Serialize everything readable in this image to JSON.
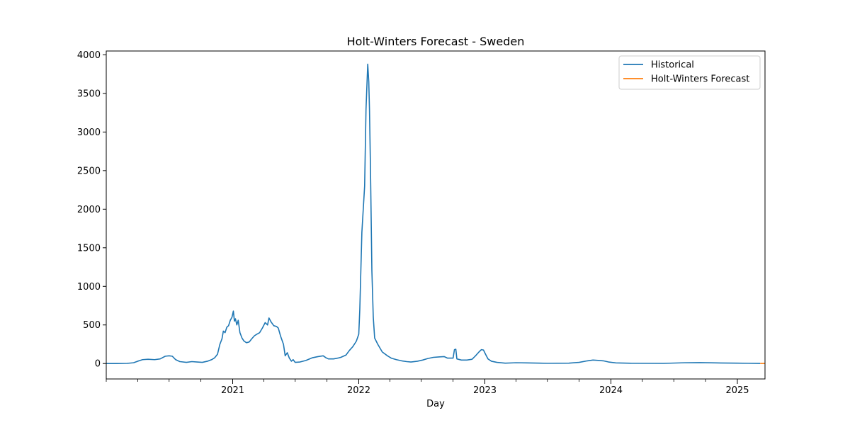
{
  "chart_data": {
    "type": "line",
    "title": "Holt-Winters Forecast - Sweden",
    "xlabel": "Day",
    "ylabel": "",
    "xlim": [
      "2020-01-01",
      "2025-03-22"
    ],
    "ylim": [
      -200,
      4050
    ],
    "x_ticks": [
      "2021",
      "2022",
      "2023",
      "2024",
      "2025"
    ],
    "y_ticks": [
      0,
      500,
      1000,
      1500,
      2000,
      2500,
      3000,
      3500,
      4000
    ],
    "grid": false,
    "legend_position": "top-right",
    "series": [
      {
        "name": "Historical",
        "color": "#1f77b4",
        "points": [
          [
            "2020-01-01",
            0
          ],
          [
            "2020-02-01",
            0
          ],
          [
            "2020-03-01",
            2
          ],
          [
            "2020-03-20",
            10
          ],
          [
            "2020-04-01",
            30
          ],
          [
            "2020-04-15",
            50
          ],
          [
            "2020-05-01",
            55
          ],
          [
            "2020-05-20",
            50
          ],
          [
            "2020-06-05",
            60
          ],
          [
            "2020-06-20",
            95
          ],
          [
            "2020-07-01",
            100
          ],
          [
            "2020-07-10",
            95
          ],
          [
            "2020-07-20",
            50
          ],
          [
            "2020-08-01",
            25
          ],
          [
            "2020-08-20",
            15
          ],
          [
            "2020-09-05",
            25
          ],
          [
            "2020-09-20",
            20
          ],
          [
            "2020-10-05",
            15
          ],
          [
            "2020-10-20",
            30
          ],
          [
            "2020-11-01",
            50
          ],
          [
            "2020-11-10",
            75
          ],
          [
            "2020-11-18",
            120
          ],
          [
            "2020-11-25",
            250
          ],
          [
            "2020-12-01",
            320
          ],
          [
            "2020-12-05",
            420
          ],
          [
            "2020-12-10",
            400
          ],
          [
            "2020-12-15",
            470
          ],
          [
            "2020-12-20",
            490
          ],
          [
            "2020-12-25",
            560
          ],
          [
            "2020-12-30",
            600
          ],
          [
            "2021-01-03",
            680
          ],
          [
            "2021-01-06",
            550
          ],
          [
            "2021-01-09",
            580
          ],
          [
            "2021-01-13",
            500
          ],
          [
            "2021-01-17",
            560
          ],
          [
            "2021-01-22",
            400
          ],
          [
            "2021-01-28",
            330
          ],
          [
            "2021-02-03",
            290
          ],
          [
            "2021-02-10",
            270
          ],
          [
            "2021-02-18",
            280
          ],
          [
            "2021-02-25",
            320
          ],
          [
            "2021-03-05",
            360
          ],
          [
            "2021-03-12",
            380
          ],
          [
            "2021-03-20",
            400
          ],
          [
            "2021-03-28",
            460
          ],
          [
            "2021-04-05",
            530
          ],
          [
            "2021-04-12",
            500
          ],
          [
            "2021-04-16",
            590
          ],
          [
            "2021-04-22",
            540
          ],
          [
            "2021-04-30",
            490
          ],
          [
            "2021-05-08",
            480
          ],
          [
            "2021-05-13",
            460
          ],
          [
            "2021-05-20",
            350
          ],
          [
            "2021-05-28",
            250
          ],
          [
            "2021-06-02",
            100
          ],
          [
            "2021-06-08",
            140
          ],
          [
            "2021-06-14",
            70
          ],
          [
            "2021-06-20",
            30
          ],
          [
            "2021-06-25",
            50
          ],
          [
            "2021-07-01",
            15
          ],
          [
            "2021-07-15",
            20
          ],
          [
            "2021-08-01",
            40
          ],
          [
            "2021-08-20",
            75
          ],
          [
            "2021-09-05",
            90
          ],
          [
            "2021-09-20",
            100
          ],
          [
            "2021-09-28",
            75
          ],
          [
            "2021-10-05",
            60
          ],
          [
            "2021-10-20",
            60
          ],
          [
            "2021-11-01",
            70
          ],
          [
            "2021-11-10",
            80
          ],
          [
            "2021-11-25",
            110
          ],
          [
            "2021-12-05",
            170
          ],
          [
            "2021-12-15",
            220
          ],
          [
            "2021-12-25",
            290
          ],
          [
            "2022-01-01",
            380
          ],
          [
            "2022-01-04",
            700
          ],
          [
            "2022-01-07",
            1200
          ],
          [
            "2022-01-10",
            1700
          ],
          [
            "2022-01-14",
            2000
          ],
          [
            "2022-01-18",
            2300
          ],
          [
            "2022-01-22",
            3300
          ],
          [
            "2022-01-27",
            3880
          ],
          [
            "2022-01-30",
            3650
          ],
          [
            "2022-02-01",
            3300
          ],
          [
            "2022-02-04",
            2500
          ],
          [
            "2022-02-08",
            1200
          ],
          [
            "2022-02-12",
            600
          ],
          [
            "2022-02-16",
            330
          ],
          [
            "2022-02-25",
            250
          ],
          [
            "2022-03-10",
            150
          ],
          [
            "2022-03-25",
            100
          ],
          [
            "2022-04-05",
            70
          ],
          [
            "2022-04-20",
            50
          ],
          [
            "2022-05-05",
            35
          ],
          [
            "2022-05-20",
            25
          ],
          [
            "2022-06-01",
            20
          ],
          [
            "2022-06-20",
            30
          ],
          [
            "2022-07-05",
            45
          ],
          [
            "2022-07-20",
            65
          ],
          [
            "2022-08-05",
            80
          ],
          [
            "2022-08-20",
            85
          ],
          [
            "2022-09-05",
            90
          ],
          [
            "2022-09-15",
            70
          ],
          [
            "2022-10-01",
            70
          ],
          [
            "2022-10-05",
            180
          ],
          [
            "2022-10-09",
            185
          ],
          [
            "2022-10-12",
            60
          ],
          [
            "2022-10-25",
            45
          ],
          [
            "2022-11-10",
            45
          ],
          [
            "2022-11-25",
            55
          ],
          [
            "2022-12-05",
            100
          ],
          [
            "2022-12-15",
            150
          ],
          [
            "2022-12-22",
            180
          ],
          [
            "2022-12-28",
            175
          ],
          [
            "2023-01-03",
            120
          ],
          [
            "2023-01-10",
            60
          ],
          [
            "2023-01-20",
            30
          ],
          [
            "2023-02-05",
            15
          ],
          [
            "2023-03-01",
            5
          ],
          [
            "2023-04-01",
            10
          ],
          [
            "2023-05-01",
            8
          ],
          [
            "2023-07-01",
            3
          ],
          [
            "2023-09-01",
            5
          ],
          [
            "2023-10-01",
            15
          ],
          [
            "2023-10-25",
            35
          ],
          [
            "2023-11-10",
            45
          ],
          [
            "2023-11-25",
            40
          ],
          [
            "2023-12-10",
            35
          ],
          [
            "2023-12-25",
            20
          ],
          [
            "2024-01-15",
            8
          ],
          [
            "2024-03-01",
            3
          ],
          [
            "2024-06-01",
            2
          ],
          [
            "2024-08-01",
            10
          ],
          [
            "2024-09-15",
            12
          ],
          [
            "2024-11-01",
            8
          ],
          [
            "2025-01-01",
            5
          ],
          [
            "2025-02-01",
            3
          ],
          [
            "2025-03-08",
            1
          ]
        ]
      },
      {
        "name": "Holt-Winters Forecast",
        "color": "#ff7f0e",
        "points": [
          [
            "2025-03-08",
            1
          ],
          [
            "2025-03-22",
            1
          ]
        ]
      }
    ]
  }
}
